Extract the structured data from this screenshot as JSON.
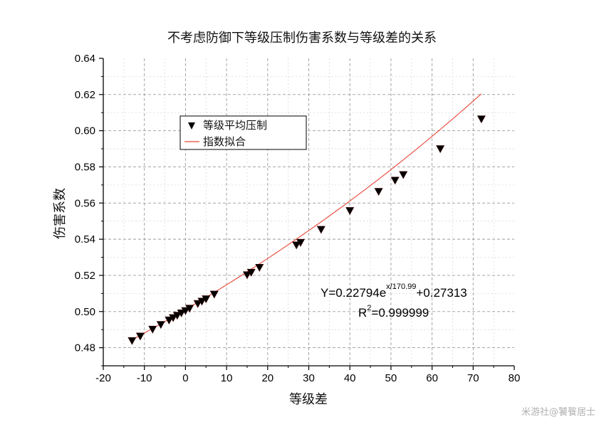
{
  "chart_data": {
    "type": "scatter",
    "title": "不考虑防御下等级压制伤害系数与等级差的关系",
    "xlabel": "等级差",
    "ylabel": "伤害系数",
    "xlim": [
      -20,
      80
    ],
    "ylim": [
      0.47,
      0.64
    ],
    "xticks": [
      "-20",
      "-10",
      "0",
      "10",
      "20",
      "30",
      "40",
      "50",
      "60",
      "70",
      "80"
    ],
    "yticks": [
      "0.48",
      "0.50",
      "0.52",
      "0.54",
      "0.56",
      "0.58",
      "0.60",
      "0.62",
      "0.64"
    ],
    "grid": true,
    "legend_position": "upper-left",
    "series": [
      {
        "name": "等级平均压制",
        "marker": "down-triangle",
        "color": "#000000",
        "x": [
          -13,
          -11,
          -8,
          -6,
          -4,
          -3,
          -2,
          -1,
          0,
          1,
          3,
          4,
          5,
          7,
          15,
          16,
          18,
          27,
          28,
          33,
          40,
          47,
          51,
          53,
          62,
          72
        ],
        "y": [
          0.4839,
          0.4864,
          0.4902,
          0.4928,
          0.4953,
          0.4966,
          0.4979,
          0.4992,
          0.5005,
          0.5018,
          0.5044,
          0.5057,
          0.507,
          0.5096,
          0.5203,
          0.5217,
          0.5244,
          0.5368,
          0.5382,
          0.5454,
          0.5558,
          0.5664,
          0.5726,
          0.5757,
          0.59,
          0.6065
        ]
      },
      {
        "name": "指数拟合",
        "kind": "fit-line",
        "color": "#e8473a",
        "formula": {
          "a": 0.22794,
          "t": 170.99,
          "c": 0.27313
        }
      }
    ],
    "annotations": {
      "equation_prefix": "Y=0.22794e",
      "equation_exponent": "x/170.99",
      "equation_suffix": "+0.27313",
      "r2_prefix": "R",
      "r2_power": "2",
      "r2_suffix": "=0.999999"
    }
  },
  "watermark": "米游社@饕餮居士"
}
